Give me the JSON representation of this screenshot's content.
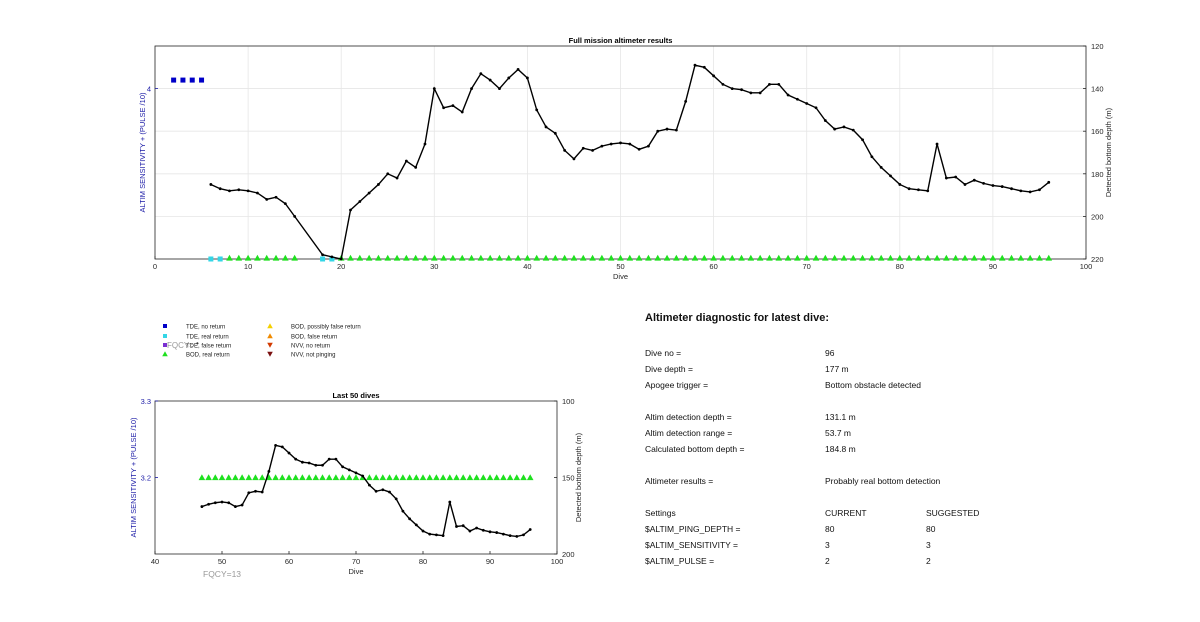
{
  "colors": {
    "axis": "#262626",
    "grid": "#e6e6e6",
    "line": "#000000",
    "left_axis": "#1a1aa6",
    "tde_no_return": "#0000c8",
    "tde_real_return": "#33d6e6",
    "tde_false_return": "#7a2fd1",
    "bod_real_return": "#1fe01f",
    "bod_possibly_false": "#f5d000",
    "bod_false_return": "#f08a00",
    "nvv_no_return": "#d23a00",
    "nvv_not_pinging": "#7a1010",
    "fqcy_text": "#999999"
  },
  "chart_data": [
    {
      "type": "line",
      "title": "Full mission altimeter results",
      "xlabel": "Dive",
      "ylabel_left": "ALTIM SENSITIVITY + (PULSE /10)",
      "ylabel_right": "Detected bottom depth (m)",
      "xlim": [
        0,
        100
      ],
      "xticks": [
        0,
        10,
        20,
        30,
        40,
        50,
        60,
        70,
        80,
        90,
        100
      ],
      "yticks_left": [
        4
      ],
      "ylim_right": [
        120,
        220
      ],
      "yticks_right": [
        120,
        140,
        160,
        180,
        200,
        220
      ],
      "right_axis_reversed": true,
      "grid": true,
      "settings_markers": {
        "series": "TDE, no return",
        "x": [
          2,
          3,
          4,
          5
        ],
        "y": 4.1
      },
      "depth_series": {
        "series": "Detected bottom depth",
        "x": [
          6,
          7,
          8,
          9,
          10,
          11,
          12,
          13,
          14,
          15,
          18,
          19,
          20,
          21,
          22,
          23,
          24,
          25,
          26,
          27,
          28,
          29,
          30,
          31,
          32,
          33,
          34,
          35,
          36,
          37,
          38,
          39,
          40,
          41,
          42,
          43,
          44,
          45,
          46,
          47,
          48,
          49,
          50,
          51,
          52,
          53,
          54,
          55,
          56,
          57,
          58,
          59,
          60,
          61,
          62,
          63,
          64,
          65,
          66,
          67,
          68,
          69,
          70,
          71,
          72,
          73,
          74,
          75,
          76,
          77,
          78,
          79,
          80,
          81,
          82,
          83,
          84,
          85,
          86,
          87,
          88,
          89,
          90,
          91,
          92,
          93,
          94,
          95,
          96
        ],
        "y": [
          185,
          187,
          188,
          187.5,
          188,
          189,
          192,
          191,
          194,
          200,
          218,
          219,
          220,
          197,
          193,
          189,
          185,
          180,
          182,
          174,
          177,
          166,
          140,
          149,
          148,
          151,
          140,
          133,
          136,
          140,
          135,
          131,
          135,
          150,
          158,
          161,
          169,
          173,
          168,
          169,
          167,
          166,
          165.5,
          166,
          168.5,
          167,
          160,
          159,
          159.5,
          146,
          129,
          130,
          134,
          138,
          140,
          140.5,
          142,
          142,
          138,
          138,
          143,
          145,
          147,
          149,
          155,
          159,
          158,
          159.5,
          164,
          172,
          177,
          181,
          185,
          187,
          187.5,
          188,
          166,
          182,
          181.5,
          185,
          183,
          184.5,
          185.5,
          186,
          187,
          188,
          188.5,
          187.5,
          184
        ]
      },
      "return_markers": [
        {
          "series": "TDE, real return",
          "x": [
            6,
            7,
            18,
            19
          ]
        },
        {
          "series": "BOD, real return",
          "x": [
            8,
            9,
            10,
            11,
            12,
            13,
            14,
            15,
            20,
            21,
            22,
            23,
            24,
            25,
            26,
            27,
            28,
            29,
            30,
            31,
            32,
            33,
            34,
            35,
            36,
            37,
            38,
            39,
            40,
            41,
            42,
            43,
            44,
            45,
            46,
            47,
            48,
            49,
            50,
            51,
            52,
            53,
            54,
            55,
            56,
            57,
            58,
            59,
            60,
            61,
            62,
            63,
            64,
            65,
            66,
            67,
            68,
            69,
            70,
            71,
            72,
            73,
            74,
            75,
            76,
            77,
            78,
            79,
            80,
            81,
            82,
            83,
            84,
            85,
            86,
            87,
            88,
            89,
            90,
            91,
            92,
            93,
            94,
            95,
            96
          ]
        }
      ]
    },
    {
      "type": "line",
      "title": "Last 50 dives",
      "xlabel": "Dive",
      "ylabel_left": "ALTIM SENSITIVITY + (PULSE /10)",
      "ylabel_right": "Detected bottom depth (m)",
      "xlim": [
        40,
        100
      ],
      "xticks": [
        40,
        50,
        60,
        70,
        80,
        90,
        100
      ],
      "ylim_left": [
        3.1,
        3.3
      ],
      "yticks_left": [
        3.2,
        3.3
      ],
      "ylim_right": [
        100,
        200
      ],
      "yticks_right": [
        100,
        150,
        200
      ],
      "right_axis_reversed": true,
      "grid": false,
      "settings_line_value": 3.2,
      "settings_markers": {
        "series": "BOD, real return",
        "x_from": 47,
        "x_to": 96
      },
      "depth_series": {
        "x": [
          47,
          48,
          49,
          50,
          51,
          52,
          53,
          54,
          55,
          56,
          57,
          58,
          59,
          60,
          61,
          62,
          63,
          64,
          65,
          66,
          67,
          68,
          69,
          70,
          71,
          72,
          73,
          74,
          75,
          76,
          77,
          78,
          79,
          80,
          81,
          82,
          83,
          84,
          85,
          86,
          87,
          88,
          89,
          90,
          91,
          92,
          93,
          94,
          95,
          96
        ],
        "y": [
          169,
          167.5,
          166.5,
          166,
          166.5,
          169,
          168,
          160,
          159,
          159.5,
          146,
          129,
          130,
          134,
          138,
          140,
          140.5,
          142,
          142,
          138,
          138,
          143,
          145,
          147,
          149,
          155,
          159,
          158,
          159.5,
          164,
          172,
          177,
          181,
          185,
          187,
          187.5,
          188,
          166,
          182,
          181.5,
          185,
          183,
          184.5,
          185.5,
          186,
          187,
          188,
          188.5,
          187.5,
          184
        ]
      }
    }
  ],
  "legend": {
    "items": [
      {
        "label": "TDE, no return",
        "color_key": "tde_no_return",
        "marker": "square"
      },
      {
        "label": "TDE, real return",
        "color_key": "tde_real_return",
        "marker": "square"
      },
      {
        "label": "TDE, false return",
        "color_key": "tde_false_return",
        "marker": "square"
      },
      {
        "label": "BOD, real return",
        "color_key": "bod_real_return",
        "marker": "triangle-up"
      },
      {
        "label": "BOD, possibly false return",
        "color_key": "bod_possibly_false",
        "marker": "triangle-up"
      },
      {
        "label": "BOD, false return",
        "color_key": "bod_false_return",
        "marker": "triangle-up"
      },
      {
        "label": "NVV, no return",
        "color_key": "nvv_no_return",
        "marker": "triangle-down"
      },
      {
        "label": "NVV, not pinging",
        "color_key": "nvv_not_pinging",
        "marker": "triangle-down"
      }
    ],
    "overlay_fqcy": "FQCY=",
    "overlay_bullet": "•"
  },
  "fqcy_label": "FQCY=13",
  "diagnostic": {
    "title": "Altimeter diagnostic for latest dive:",
    "dive_no_label": "Dive no =",
    "dive_no": "96",
    "dive_depth_label": "Dive depth =",
    "dive_depth": "177 m",
    "apogee_label": "Apogee trigger =",
    "apogee": "Bottom obstacle detected",
    "detection_depth_label": "Altim detection depth =",
    "detection_depth": "131.1 m",
    "detection_range_label": "Altim detection range =",
    "detection_range": "53.7 m",
    "bottom_depth_label": "Calculated bottom depth =",
    "bottom_depth": "184.8 m",
    "results_label": "Altimeter results =",
    "results": "Probably real bottom detection",
    "settings_label": "Settings",
    "current_label": "CURRENT",
    "suggested_label": "SUGGESTED",
    "ping_depth_label": "$ALTIM_PING_DEPTH =",
    "ping_depth_current": "80",
    "ping_depth_suggested": "80",
    "sensitivity_label": "$ALTIM_SENSITIVITY =",
    "sensitivity_current": "3",
    "sensitivity_suggested": "3",
    "pulse_label": "$ALTIM_PULSE =",
    "pulse_current": "2",
    "pulse_suggested": "2"
  }
}
